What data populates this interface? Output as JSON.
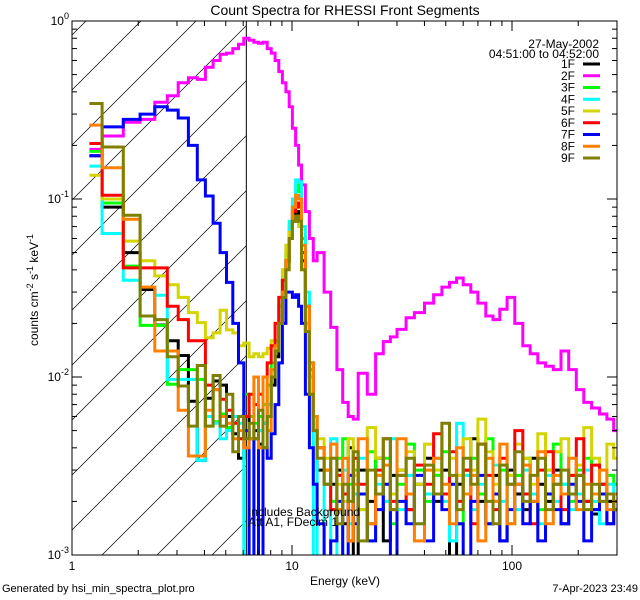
{
  "chart_data": {
    "type": "line",
    "title": "Count Spectra for RHESSI Front Segments",
    "xlabel": "Energy (keV)",
    "ylabel": "counts cm⁻² s⁻¹ keV⁻¹",
    "ylabel_parts": {
      "a": "counts cm",
      "b": "-2",
      "c": " s",
      "d": "-1",
      "e": " keV",
      "f": "-1"
    },
    "xscale": "log",
    "yscale": "log",
    "xlim": [
      1,
      306
    ],
    "ylim": [
      0.001,
      1
    ],
    "x_ticks": [
      {
        "value": 1,
        "label": "1"
      },
      {
        "value": 10,
        "label": "10"
      },
      {
        "value": 100,
        "label": "100"
      }
    ],
    "y_ticks": [
      {
        "value": 1,
        "base": "10",
        "exp": "0"
      },
      {
        "value": 0.1,
        "base": "10",
        "exp": "-1"
      },
      {
        "value": 0.01,
        "base": "10",
        "exp": "-2"
      },
      {
        "value": 0.001,
        "base": "10",
        "exp": "-3"
      }
    ],
    "grid": false,
    "legend_placement": "top-right",
    "date": "27-May-2002",
    "time_range": "04:51:00 to 04:52:00",
    "annotations": [
      "Includes Background",
      "Att A1, FDecim  1"
    ],
    "attenuator_edge_keV": 6.2,
    "bin_edges_keV": [
      1.2,
      1.37,
      1.71,
      2.04,
      2.38,
      2.71,
      3.04,
      3.38,
      3.71,
      4.04,
      4.38,
      4.71,
      5.04,
      5.38,
      5.71,
      6.04,
      6.38,
      6.71,
      7.04,
      7.38,
      7.71,
      8.04,
      8.38,
      8.71,
      9.04,
      9.38,
      9.71,
      10.04,
      10.38,
      10.71,
      11.04,
      11.5,
      12,
      12.5,
      13,
      14,
      15,
      16,
      17,
      18,
      19,
      20,
      22,
      24,
      26,
      28,
      30,
      33,
      36,
      40,
      44,
      48,
      52,
      56,
      60,
      65,
      70,
      76,
      82,
      88,
      95,
      103,
      112,
      121,
      131,
      142,
      154,
      167,
      181,
      196,
      212,
      230,
      250,
      270,
      290,
      306
    ],
    "series": [
      {
        "name": "1F",
        "color": "#000000",
        "values": [
          0.175,
          0.09,
          0.05,
          0.031,
          0.0196,
          0.016,
          0.0132,
          0.0073,
          0.0034,
          0.0076,
          0.0095,
          0.009,
          0.006,
          0.0048,
          0.0035,
          0.006,
          0.0045,
          0.005,
          0.0042,
          0.0055,
          0.007,
          0.009,
          0.013,
          0.02,
          0.03,
          0.045,
          0.065,
          0.075,
          0.085,
          0.075,
          0.045,
          0.02,
          0.01,
          0.005,
          0.003,
          0.0025,
          0.0025,
          0.003,
          0.0015,
          0.004,
          0.0009,
          0.003,
          0.002,
          0.0035,
          0.0012,
          0.0028,
          0.003,
          0.0018,
          0.0025,
          0.0035,
          0.002,
          0.003,
          0.0009,
          0.0025,
          0.003,
          0.0045,
          0.002,
          0.0015,
          0.0028,
          0.0012,
          0.003,
          0.0022,
          0.0018,
          0.0035,
          0.0025,
          0.002,
          0.003,
          0.0015,
          0.0022,
          0.0028,
          0.002,
          0.0017,
          0.0025,
          0.002,
          0.0018
        ]
      },
      {
        "name": "2F",
        "color": "#ff00ff",
        "values": [
          0.19,
          0.226,
          0.27,
          0.28,
          0.35,
          0.38,
          0.45,
          0.48,
          0.47,
          0.55,
          0.6,
          0.65,
          0.66,
          0.7,
          0.74,
          0.8,
          0.78,
          0.76,
          0.75,
          0.76,
          0.7,
          0.66,
          0.6,
          0.52,
          0.45,
          0.4,
          0.33,
          0.25,
          0.2,
          0.155,
          0.12,
          0.085,
          0.06,
          0.045,
          0.05,
          0.03,
          0.019,
          0.011,
          0.0072,
          0.006,
          0.0058,
          0.0105,
          0.008,
          0.0135,
          0.0158,
          0.0168,
          0.0185,
          0.0215,
          0.023,
          0.026,
          0.029,
          0.032,
          0.034,
          0.036,
          0.033,
          0.03,
          0.026,
          0.022,
          0.021,
          0.024,
          0.028,
          0.02,
          0.015,
          0.0135,
          0.012,
          0.0115,
          0.011,
          0.014,
          0.011,
          0.0085,
          0.0072,
          0.0067,
          0.0062,
          0.0058,
          0.005
        ]
      },
      {
        "name": "3F",
        "color": "#00ff00",
        "values": [
          0.185,
          0.095,
          0.042,
          0.0195,
          0.0195,
          0.0091,
          0.011,
          0.011,
          0.0097,
          0.0053,
          0.0056,
          0.0062,
          0.0052,
          0.0055,
          0.006,
          0.008,
          0.006,
          0.0055,
          0.006,
          0.007,
          0.009,
          0.012,
          0.016,
          0.025,
          0.035,
          0.05,
          0.07,
          0.09,
          0.11,
          0.12,
          0.06,
          0.025,
          0.011,
          0.006,
          0.004,
          0.003,
          0.002,
          0.0035,
          0.0045,
          0.0025,
          0.003,
          0.0018,
          0.0038,
          0.0022,
          0.0035,
          0.0015,
          0.0025,
          0.0042,
          0.003,
          0.002,
          0.0028,
          0.0038,
          0.0025,
          0.0015,
          0.003,
          0.0035,
          0.0022,
          0.0045,
          0.002,
          0.003,
          0.0015,
          0.0028,
          0.0035,
          0.0022,
          0.0018,
          0.003,
          0.0042,
          0.0025,
          0.002,
          0.003,
          0.0035,
          0.0018,
          0.0022,
          0.0028,
          0.0025
        ]
      },
      {
        "name": "4F",
        "color": "#00ffff",
        "values": [
          0.153,
          0.064,
          0.035,
          0.022,
          0.0288,
          0.0097,
          0.0097,
          0.0097,
          0.0034,
          0.006,
          0.0055,
          0.0045,
          0.005,
          0.006,
          0.0055,
          0.0009,
          0.0009,
          0.0045,
          0.005,
          0.0055,
          0.007,
          0.01,
          0.014,
          0.022,
          0.035,
          0.05,
          0.075,
          0.1,
          0.128,
          0.125,
          0.07,
          0.03,
          0.012,
          0.0009,
          0.004,
          0.0009,
          0.0045,
          0.0009,
          0.003,
          0.0015,
          0.0022,
          0.0035,
          0.0012,
          0.0025,
          0.002,
          0.0045,
          0.0018,
          0.0028,
          0.0015,
          0.0022,
          0.0035,
          0.002,
          0.0012,
          0.0055,
          0.0028,
          0.0018,
          0.0025,
          0.0015,
          0.0032,
          0.002,
          0.0025,
          0.0018,
          0.003,
          0.0022,
          0.0015,
          0.0028,
          0.002,
          0.0025,
          0.0018,
          0.0022,
          0.003,
          0.002,
          0.0015,
          0.0025,
          0.0022
        ]
      },
      {
        "name": "5F",
        "color": "#d4d400",
        "values": [
          0.136,
          0.1,
          0.058,
          0.045,
          0.037,
          0.033,
          0.028,
          0.023,
          0.0202,
          0.0166,
          0.0177,
          0.0237,
          0.0184,
          0.0177,
          0.015,
          0.0155,
          0.013,
          0.0135,
          0.013,
          0.0135,
          0.0145,
          0.016,
          0.02,
          0.028,
          0.04,
          0.055,
          0.065,
          0.075,
          0.08,
          0.07,
          0.04,
          0.02,
          0.01,
          0.006,
          0.0045,
          0.0035,
          0.0035,
          0.0025,
          0.002,
          0.0045,
          0.0028,
          0.0018,
          0.0052,
          0.0035,
          0.0025,
          0.0022,
          0.003,
          0.0038,
          0.0025,
          0.0042,
          0.003,
          0.0022,
          0.0035,
          0.0028,
          0.0045,
          0.003,
          0.0058,
          0.0038,
          0.0025,
          0.0032,
          0.0028,
          0.0042,
          0.0035,
          0.0025,
          0.0048,
          0.003,
          0.0038,
          0.0045,
          0.0028,
          0.0032,
          0.0052,
          0.0035,
          0.003,
          0.0042,
          0.0035
        ]
      },
      {
        "name": "6F",
        "color": "#ff0000",
        "values": [
          0.205,
          0.105,
          0.041,
          0.041,
          0.041,
          0.025,
          0.021,
          0.016,
          0.016,
          0.009,
          0.0085,
          0.0075,
          0.0065,
          0.0055,
          0.0045,
          0.006,
          0.008,
          0.007,
          0.008,
          0.01,
          0.012,
          0.015,
          0.02,
          0.028,
          0.035,
          0.045,
          0.06,
          0.085,
          0.095,
          0.09,
          0.05,
          0.025,
          0.012,
          0.006,
          0.004,
          0.003,
          0.0018,
          0.0028,
          0.0022,
          0.0012,
          0.0035,
          0.0025,
          0.0015,
          0.003,
          0.0045,
          0.002,
          0.0028,
          0.0018,
          0.0032,
          0.0025,
          0.0048,
          0.0022,
          0.0038,
          0.002,
          0.003,
          0.0015,
          0.0042,
          0.0028,
          0.0018,
          0.0035,
          0.0025,
          0.005,
          0.0022,
          0.0015,
          0.003,
          0.0038,
          0.0025,
          0.0018,
          0.0028,
          0.0045,
          0.002,
          0.0032,
          0.0025,
          0.0015,
          0.002
        ]
      },
      {
        "name": "7F",
        "color": "#0000ff",
        "values": [
          0.175,
          0.254,
          0.28,
          0.3,
          0.33,
          0.316,
          0.285,
          0.2,
          0.128,
          0.104,
          0.073,
          0.05,
          0.034,
          0.02,
          0.012,
          0.005,
          0.0009,
          0.0045,
          0.0009,
          0.004,
          0.0035,
          0.0048,
          0.007,
          0.012,
          0.02,
          0.03,
          0.03,
          0.028,
          0.029,
          0.025,
          0.02,
          0.008,
          0.004,
          0.0025,
          0.0015,
          0.0009,
          0.0012,
          0.002,
          0.0009,
          0.0028,
          0.0015,
          0.0022,
          0.0012,
          0.0018,
          0.0025,
          0.0009,
          0.002,
          0.0015,
          0.0028,
          0.0012,
          0.0022,
          0.0018,
          0.0025,
          0.0015,
          0.0009,
          0.002,
          0.0028,
          0.0015,
          0.0022,
          0.0012,
          0.0018,
          0.0025,
          0.0015,
          0.002,
          0.0012,
          0.0022,
          0.0018,
          0.0015,
          0.0025,
          0.002,
          0.0012,
          0.0018,
          0.0022,
          0.0015,
          0.0018
        ]
      },
      {
        "name": "8F",
        "color": "#ff8000",
        "values": [
          0.26,
          0.15,
          0.077,
          0.032,
          0.014,
          0.014,
          0.0065,
          0.0036,
          0.0036,
          0.0065,
          0.0085,
          0.006,
          0.0055,
          0.0045,
          0.005,
          0.004,
          0.0045,
          0.01,
          0.004,
          0.01,
          0.005,
          0.011,
          0.015,
          0.02,
          0.03,
          0.045,
          0.06,
          0.09,
          0.105,
          0.1,
          0.055,
          0.025,
          0.012,
          0.006,
          0.004,
          0.003,
          0.0042,
          0.0018,
          0.0035,
          0.0012,
          0.0025,
          0.0045,
          0.0015,
          0.0028,
          0.0032,
          0.0018,
          0.0045,
          0.0022,
          0.0012,
          0.003,
          0.0035,
          0.0025,
          0.0015,
          0.004,
          0.0022,
          0.0028,
          0.0012,
          0.0035,
          0.002,
          0.0042,
          0.0015,
          0.0025,
          0.0032,
          0.002,
          0.0038,
          0.0015,
          0.0028,
          0.0022,
          0.0035,
          0.0018,
          0.0025,
          0.0022,
          0.003,
          0.0018,
          0.0022
        ]
      },
      {
        "name": "9F",
        "color": "#808000",
        "values": [
          0.344,
          0.196,
          0.081,
          0.022,
          0.021,
          0.013,
          0.0089,
          0.0053,
          0.0116,
          0.0053,
          0.0102,
          0.0053,
          0.008,
          0.0038,
          0.006,
          0.0045,
          0.0055,
          0.0045,
          0.0065,
          0.004,
          0.006,
          0.01,
          0.014,
          0.02,
          0.028,
          0.04,
          0.06,
          0.075,
          0.08,
          0.075,
          0.04,
          0.018,
          0.008,
          0.005,
          0.0035,
          0.0025,
          0.0035,
          0.0015,
          0.0025,
          0.002,
          0.0038,
          0.0012,
          0.003,
          0.0022,
          0.0045,
          0.0018,
          0.0028,
          0.0035,
          0.0015,
          0.0032,
          0.0022,
          0.0055,
          0.0028,
          0.0018,
          0.0035,
          0.0025,
          0.0042,
          0.002,
          0.0015,
          0.0032,
          0.0025,
          0.0038,
          0.002,
          0.0028,
          0.0035,
          0.0018,
          0.0025,
          0.003,
          0.0022,
          0.0028,
          0.0018,
          0.0025,
          0.002,
          0.0022,
          0.0018
        ]
      }
    ]
  },
  "footer": {
    "generated_by": "Generated by hsi_min_spectra_plot.pro",
    "timestamp": "7-Apr-2023 23:49"
  }
}
